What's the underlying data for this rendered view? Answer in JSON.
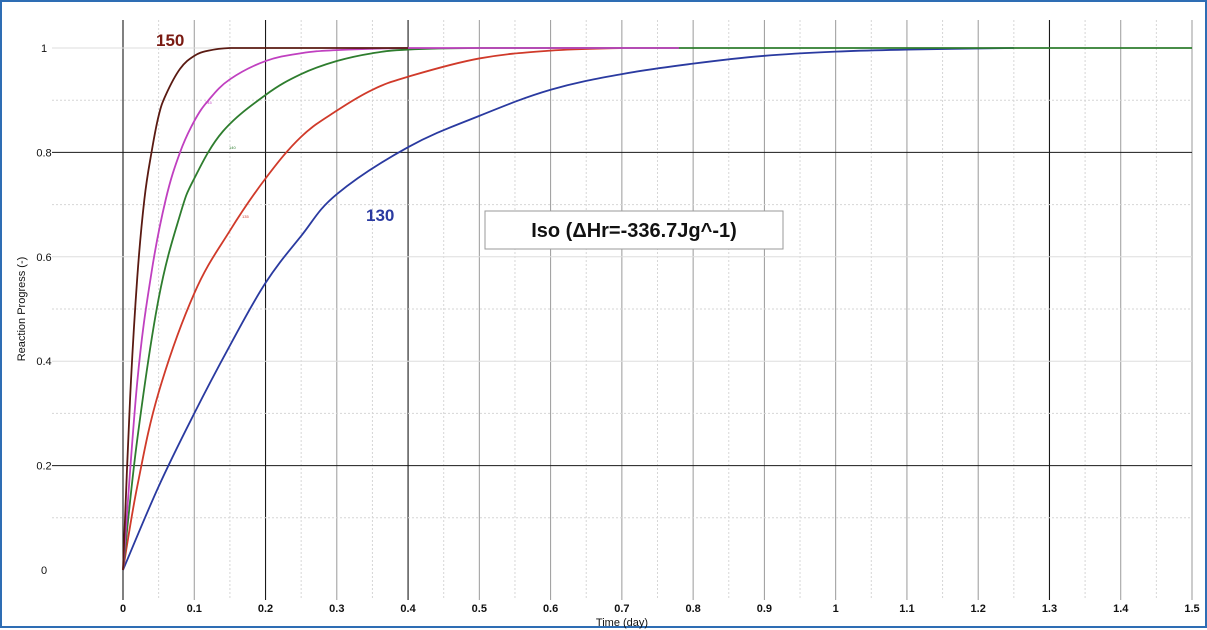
{
  "chart_data": {
    "type": "line",
    "title": "",
    "xlabel": "Time (day)",
    "ylabel": "Reaction Progress (-)",
    "xlim": [
      0,
      1.5
    ],
    "ylim": [
      0,
      1
    ],
    "x_ticks": [
      0,
      0.1,
      0.2,
      0.3,
      0.4,
      0.5,
      0.6,
      0.7,
      0.8,
      0.9,
      1,
      1.1,
      1.2,
      1.3,
      1.4,
      1.5
    ],
    "x_tick_labels": [
      "0",
      "0.1",
      "0.2",
      "0.3",
      "0.4",
      "0.5",
      "0.6",
      "0.7",
      "0.8",
      "0.9",
      "1",
      "1.1",
      "1.2",
      "1.3",
      "1.4",
      "1.5"
    ],
    "y_ticks": [
      0,
      0.2,
      0.4,
      0.6,
      0.8,
      1
    ],
    "y_tick_labels": [
      "0",
      "0.2",
      "0.4",
      "0.6",
      "0.8",
      "1"
    ],
    "grid": true,
    "legend": "none",
    "annotation": "Iso (ΔHr=-336.7Jg^-1)",
    "series": [
      {
        "name": "150",
        "color": "#5a1a12",
        "x": [
          0,
          0.01,
          0.02,
          0.03,
          0.04,
          0.05,
          0.06,
          0.08,
          0.1,
          0.12,
          0.15,
          0.2,
          0.3,
          0.4
        ],
        "values": [
          0,
          0.33,
          0.56,
          0.71,
          0.8,
          0.87,
          0.91,
          0.96,
          0.985,
          0.995,
          1,
          1,
          1,
          1
        ],
        "label": "150",
        "label_color": "#7a1a12"
      },
      {
        "name": "145",
        "color": "#c040c0",
        "x": [
          0,
          0.02,
          0.04,
          0.06,
          0.08,
          0.1,
          0.12,
          0.15,
          0.2,
          0.25,
          0.3,
          0.4,
          0.5,
          0.6,
          0.78
        ],
        "values": [
          0,
          0.36,
          0.57,
          0.71,
          0.8,
          0.86,
          0.9,
          0.94,
          0.975,
          0.99,
          0.996,
          1,
          1,
          1,
          1
        ],
        "label": "145",
        "label_color": "#c040c0"
      },
      {
        "name": "140",
        "color": "#2e7d2e",
        "x": [
          0,
          0.02,
          0.05,
          0.08,
          0.1,
          0.14,
          0.2,
          0.25,
          0.3,
          0.35,
          0.4,
          0.5,
          0.7,
          1.0,
          1.5
        ],
        "values": [
          0,
          0.25,
          0.52,
          0.68,
          0.75,
          0.84,
          0.91,
          0.95,
          0.975,
          0.99,
          0.997,
          1,
          1,
          1,
          1
        ],
        "label": "140",
        "label_color": "#2e7d2e"
      },
      {
        "name": "135",
        "color": "#d03a2a",
        "x": [
          0,
          0.02,
          0.05,
          0.1,
          0.15,
          0.2,
          0.25,
          0.3,
          0.35,
          0.4,
          0.5,
          0.6,
          0.7
        ],
        "values": [
          0,
          0.16,
          0.34,
          0.53,
          0.65,
          0.75,
          0.83,
          0.88,
          0.92,
          0.945,
          0.98,
          0.995,
          1
        ],
        "label": "135",
        "label_color": "#d03a2a"
      },
      {
        "name": "130",
        "color": "#2a3aa0",
        "x": [
          0,
          0.05,
          0.1,
          0.15,
          0.2,
          0.25,
          0.3,
          0.4,
          0.5,
          0.6,
          0.7,
          0.8,
          0.9,
          1.0,
          1.1,
          1.25
        ],
        "values": [
          0,
          0.16,
          0.3,
          0.43,
          0.55,
          0.64,
          0.72,
          0.81,
          0.87,
          0.92,
          0.95,
          0.97,
          0.985,
          0.993,
          0.997,
          1
        ],
        "label": "130",
        "label_color": "#2a3aa0"
      }
    ]
  }
}
